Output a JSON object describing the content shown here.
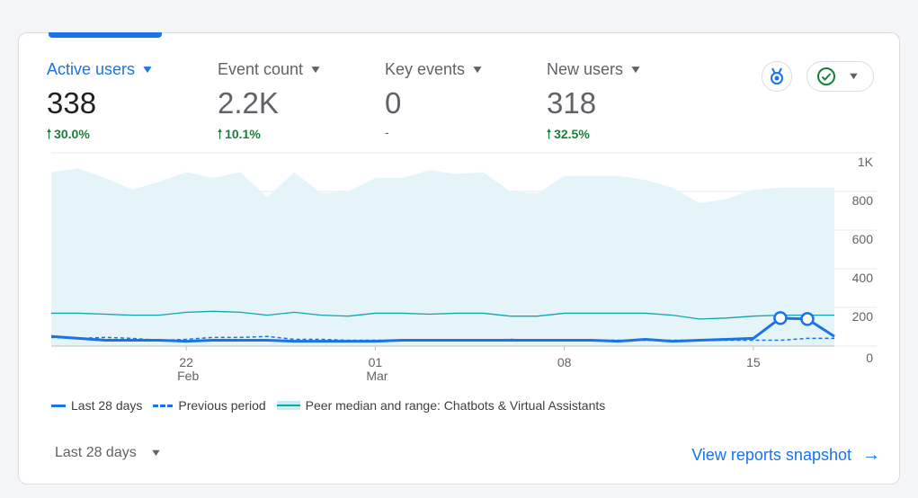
{
  "metrics": [
    {
      "label": "Active users",
      "value": "338",
      "change": "30.0%",
      "direction": "up"
    },
    {
      "label": "Event count",
      "value": "2.2K",
      "change": "10.1%",
      "direction": "up"
    },
    {
      "label": "Key events",
      "value": "0",
      "change": "-",
      "direction": "none"
    },
    {
      "label": "New users",
      "value": "318",
      "change": "32.5%",
      "direction": "up"
    }
  ],
  "icons": {
    "caret": "▼",
    "up_arrow": "🠑",
    "insight": "insights-medal-icon",
    "status": "check-circle-icon",
    "link_arrow": "→"
  },
  "colors": {
    "accent": "#1a73e8",
    "positive": "#188038",
    "peer_band": "#e4f4f8",
    "peer_line": "#12a4af"
  },
  "chart_data": {
    "type": "line",
    "y_ticks": [
      "1K",
      "800",
      "600",
      "400",
      "200",
      "0"
    ],
    "ylim": [
      0,
      1000
    ],
    "x_ticks": [
      {
        "day": "22",
        "month": "Feb",
        "index": 5
      },
      {
        "day": "01",
        "month": "Mar",
        "index": 12
      },
      {
        "day": "08",
        "month": "",
        "index": 19
      },
      {
        "day": "15",
        "month": "",
        "index": 26
      }
    ],
    "grid": true,
    "series": [
      {
        "name": "Last 28 days",
        "style": "solid",
        "color": "#1a73e8",
        "values": [
          50,
          40,
          30,
          30,
          30,
          25,
          30,
          30,
          30,
          25,
          25,
          25,
          25,
          30,
          30,
          30,
          30,
          30,
          30,
          30,
          30,
          25,
          35,
          25,
          30,
          35,
          40,
          145,
          140,
          50
        ],
        "highlighted_points": [
          27,
          28
        ]
      },
      {
        "name": "Previous period",
        "style": "dashed",
        "color": "#1a73e8",
        "values": [
          45,
          40,
          45,
          40,
          30,
          35,
          45,
          45,
          50,
          35,
          35,
          30,
          30,
          30,
          30,
          30,
          30,
          35,
          30,
          30,
          30,
          30,
          30,
          30,
          30,
          30,
          30,
          30,
          40,
          40
        ]
      },
      {
        "name": "Peer median and range: Chatbots & Virtual Assistants",
        "style": "band",
        "median": [
          170,
          170,
          165,
          160,
          160,
          175,
          180,
          175,
          160,
          175,
          160,
          155,
          170,
          170,
          165,
          170,
          170,
          155,
          155,
          170,
          170,
          170,
          170,
          160,
          140,
          145,
          155,
          160,
          160,
          160
        ],
        "upper": [
          900,
          920,
          870,
          810,
          850,
          900,
          870,
          900,
          770,
          900,
          790,
          800,
          870,
          870,
          910,
          890,
          900,
          800,
          790,
          880,
          880,
          880,
          860,
          820,
          740,
          760,
          810,
          820,
          820,
          820
        ]
      }
    ]
  },
  "legend": {
    "last": "Last 28 days",
    "previous": "Previous period",
    "peer": "Peer median and range: Chatbots & Virtual Assistants"
  },
  "footer": {
    "range_label": "Last 28 days",
    "view_link": "View reports snapshot"
  }
}
